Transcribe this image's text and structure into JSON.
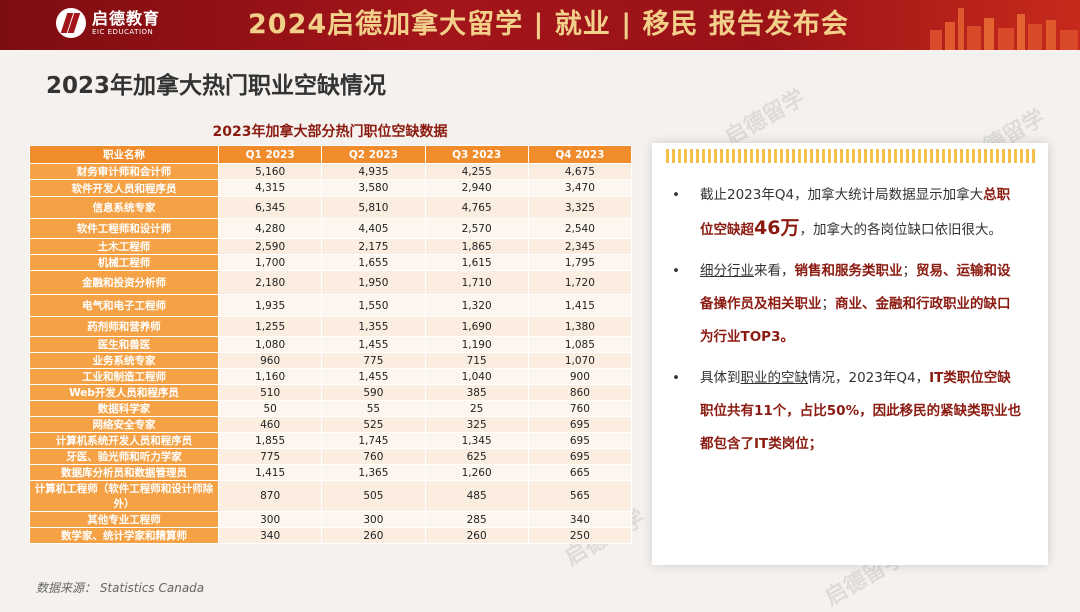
{
  "header": {
    "logo_cn": "启德教育",
    "logo_en": "EIC EDUCATION",
    "banner": "2024启德加拿大留学 | 就业 | 移民 报告发布会"
  },
  "page_title": "2023年加拿大热门职业空缺情况",
  "watermark_text": "启德留学",
  "table": {
    "title": "2023年加拿大部分热门职位空缺数据",
    "headers": [
      "职业名称",
      "Q1 2023",
      "Q2 2023",
      "Q3 2023",
      "Q4 2023"
    ],
    "rows": [
      [
        "财务审计师和会计师",
        "5,160",
        "4,935",
        "4,255",
        "4,675"
      ],
      [
        "软件开发人员和程序员",
        "4,315",
        "3,580",
        "2,940",
        "3,470"
      ],
      [
        "信息系统专家",
        "6,345",
        "5,810",
        "4,765",
        "3,325"
      ],
      [
        "软件工程师和设计师",
        "4,280",
        "4,405",
        "2,570",
        "2,540"
      ],
      [
        "土木工程师",
        "2,590",
        "2,175",
        "1,865",
        "2,345"
      ],
      [
        "机械工程师",
        "1,700",
        "1,655",
        "1,615",
        "1,795"
      ],
      [
        "金融和投资分析师",
        "2,180",
        "1,950",
        "1,710",
        "1,720"
      ],
      [
        "电气和电子工程师",
        "1,935",
        "1,550",
        "1,320",
        "1,415"
      ],
      [
        "药剂师和营养师",
        "1,255",
        "1,355",
        "1,690",
        "1,380"
      ],
      [
        "医生和兽医",
        "1,080",
        "1,455",
        "1,190",
        "1,085"
      ],
      [
        "业务系统专家",
        "960",
        "775",
        "715",
        "1,070"
      ],
      [
        "工业和制造工程师",
        "1,160",
        "1,455",
        "1,040",
        "900"
      ],
      [
        "Web开发人员和程序员",
        "510",
        "590",
        "385",
        "860"
      ],
      [
        "数据科学家",
        "50",
        "55",
        "25",
        "760"
      ],
      [
        "网络安全专家",
        "460",
        "525",
        "325",
        "695"
      ],
      [
        "计算机系统开发人员和程序员",
        "1,855",
        "1,745",
        "1,345",
        "695"
      ],
      [
        "牙医、验光师和听力学家",
        "775",
        "760",
        "625",
        "695"
      ],
      [
        "数据库分析员和数据管理员",
        "1,415",
        "1,365",
        "1,260",
        "665"
      ],
      [
        "计算机工程师（软件工程师和设计师除外）",
        "870",
        "505",
        "485",
        "565"
      ],
      [
        "其他专业工程师",
        "300",
        "300",
        "285",
        "340"
      ],
      [
        "数学家、统计学家和精算师",
        "340",
        "260",
        "260",
        "250"
      ]
    ],
    "row_heights": [
      15,
      17,
      22,
      20,
      16,
      16,
      24,
      22,
      20,
      15,
      15,
      15,
      15,
      14,
      15,
      15,
      15,
      15,
      30,
      15,
      15
    ]
  },
  "source": "数据来源： Statistics Canada",
  "card": {
    "bullet_char": "•",
    "b1_a": "截止2023年Q4，加拿大统计局数据显示加拿大",
    "b1_b": "总职位空缺超",
    "b1_c": "46万",
    "b1_d": "，加拿大的各岗位缺口依旧很大。",
    "b2_a": "细分行业",
    "b2_b": "来看，",
    "b2_c": "销售和服务类职业",
    "b2_d": "；",
    "b2_e": "贸易、运输和设备操作员及相关职业",
    "b2_f": "；",
    "b2_g": "商业、金融和行政职业的缺口为行业TOP3。",
    "b3_a": "具体到",
    "b3_b": "职业的空缺",
    "b3_c": "情况，2023年Q4，",
    "b3_d": "IT类职位空缺职位共有11个，占比50%，因此移民的紧缺类职业也都包含了IT类岗位；"
  }
}
